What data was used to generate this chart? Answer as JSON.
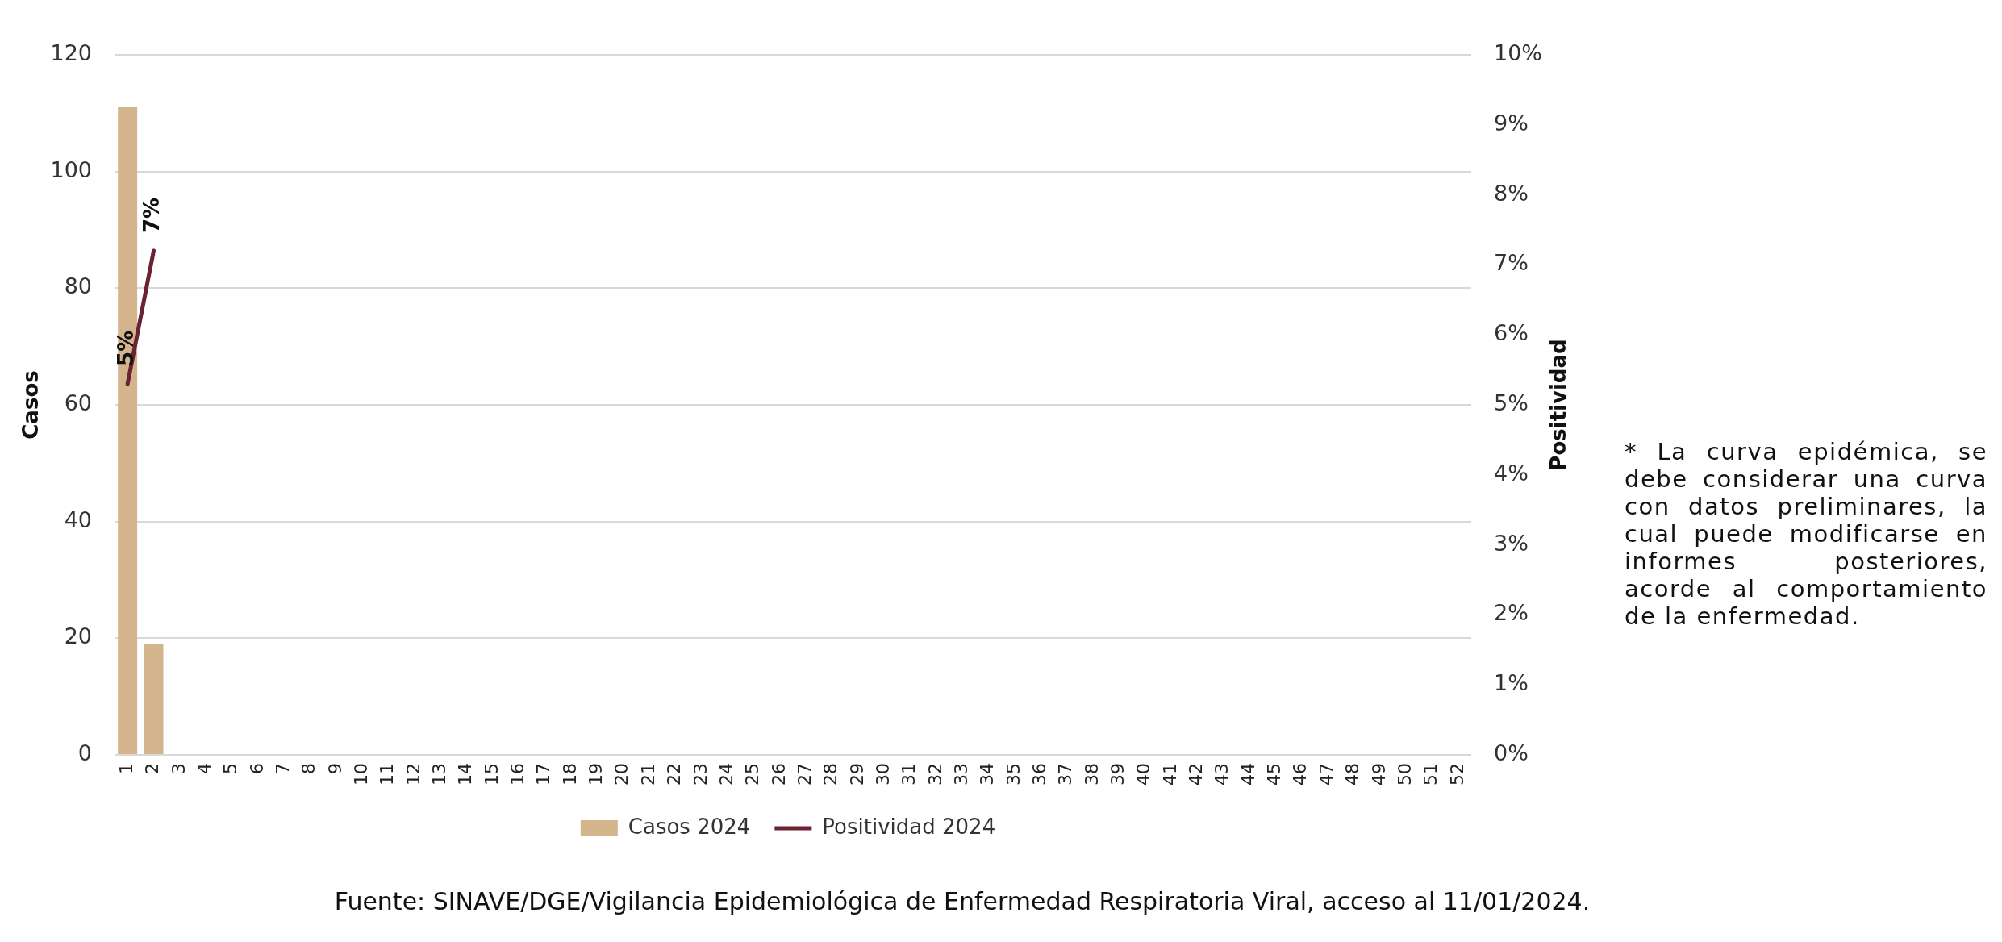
{
  "chart_data": {
    "type": "bar",
    "categories": [
      "1",
      "2",
      "3",
      "4",
      "5",
      "6",
      "7",
      "8",
      "9",
      "10",
      "11",
      "12",
      "13",
      "14",
      "15",
      "16",
      "17",
      "18",
      "19",
      "20",
      "21",
      "22",
      "23",
      "24",
      "25",
      "26",
      "27",
      "28",
      "29",
      "30",
      "31",
      "32",
      "33",
      "34",
      "35",
      "36",
      "37",
      "38",
      "39",
      "40",
      "41",
      "42",
      "43",
      "44",
      "45",
      "46",
      "47",
      "48",
      "49",
      "50",
      "51",
      "52"
    ],
    "series": [
      {
        "name": "Casos 2024",
        "color": "#d4b48c",
        "values": [
          111,
          19,
          null,
          null,
          null,
          null,
          null,
          null,
          null,
          null,
          null,
          null,
          null,
          null,
          null,
          null,
          null,
          null,
          null,
          null,
          null,
          null,
          null,
          null,
          null,
          null,
          null,
          null,
          null,
          null,
          null,
          null,
          null,
          null,
          null,
          null,
          null,
          null,
          null,
          null,
          null,
          null,
          null,
          null,
          null,
          null,
          null,
          null,
          null,
          null,
          null,
          null
        ]
      },
      {
        "name": "Positividad 2024",
        "type": "line",
        "axis": "y2",
        "color": "#6b2233",
        "values": [
          5.3,
          7.2,
          null,
          null,
          null,
          null,
          null,
          null,
          null,
          null,
          null,
          null,
          null,
          null,
          null,
          null,
          null,
          null,
          null,
          null,
          null,
          null,
          null,
          null,
          null,
          null,
          null,
          null,
          null,
          null,
          null,
          null,
          null,
          null,
          null,
          null,
          null,
          null,
          null,
          null,
          null,
          null,
          null,
          null,
          null,
          null,
          null,
          null,
          null,
          null,
          null,
          null
        ],
        "value_labels": [
          "5%",
          "7%",
          null,
          null,
          null,
          null,
          null,
          null,
          null,
          null,
          null,
          null,
          null,
          null,
          null,
          null,
          null,
          null,
          null,
          null,
          null,
          null,
          null,
          null,
          null,
          null,
          null,
          null,
          null,
          null,
          null,
          null,
          null,
          null,
          null,
          null,
          null,
          null,
          null,
          null,
          null,
          null,
          null,
          null,
          null,
          null,
          null,
          null,
          null,
          null,
          null,
          null
        ]
      }
    ],
    "ylabel": "Casos",
    "y2label": "Positividad",
    "ylim": [
      0,
      120
    ],
    "yticks": [
      0,
      20,
      40,
      60,
      80,
      100,
      120
    ],
    "y2lim": [
      0,
      10
    ],
    "y2ticks": [
      {
        "value": 0,
        "label": "0%"
      },
      {
        "value": 1,
        "label": "1%"
      },
      {
        "value": 2,
        "label": "2%"
      },
      {
        "value": 3,
        "label": "3%"
      },
      {
        "value": 4,
        "label": "4%"
      },
      {
        "value": 5,
        "label": "5%"
      },
      {
        "value": 6,
        "label": "6%"
      },
      {
        "value": 7,
        "label": "7%"
      },
      {
        "value": 8,
        "label": "8%"
      },
      {
        "value": 9,
        "label": "9%"
      },
      {
        "value": 10,
        "label": "10%"
      }
    ],
    "grid": "y",
    "legend": "bottom",
    "marker": "none",
    "line_style": "solid",
    "annotations": [
      "* La curva epidémica, se debe considerar una curva con datos preliminares, la cual puede modificarse en informes posteriores, acorde al comportamiento de la enfermedad.",
      "Fuente: SINAVE/DGE/Vigilancia Epidemiológica de Enfermedad Respiratoria Viral, acceso al 11/01/2024."
    ]
  }
}
